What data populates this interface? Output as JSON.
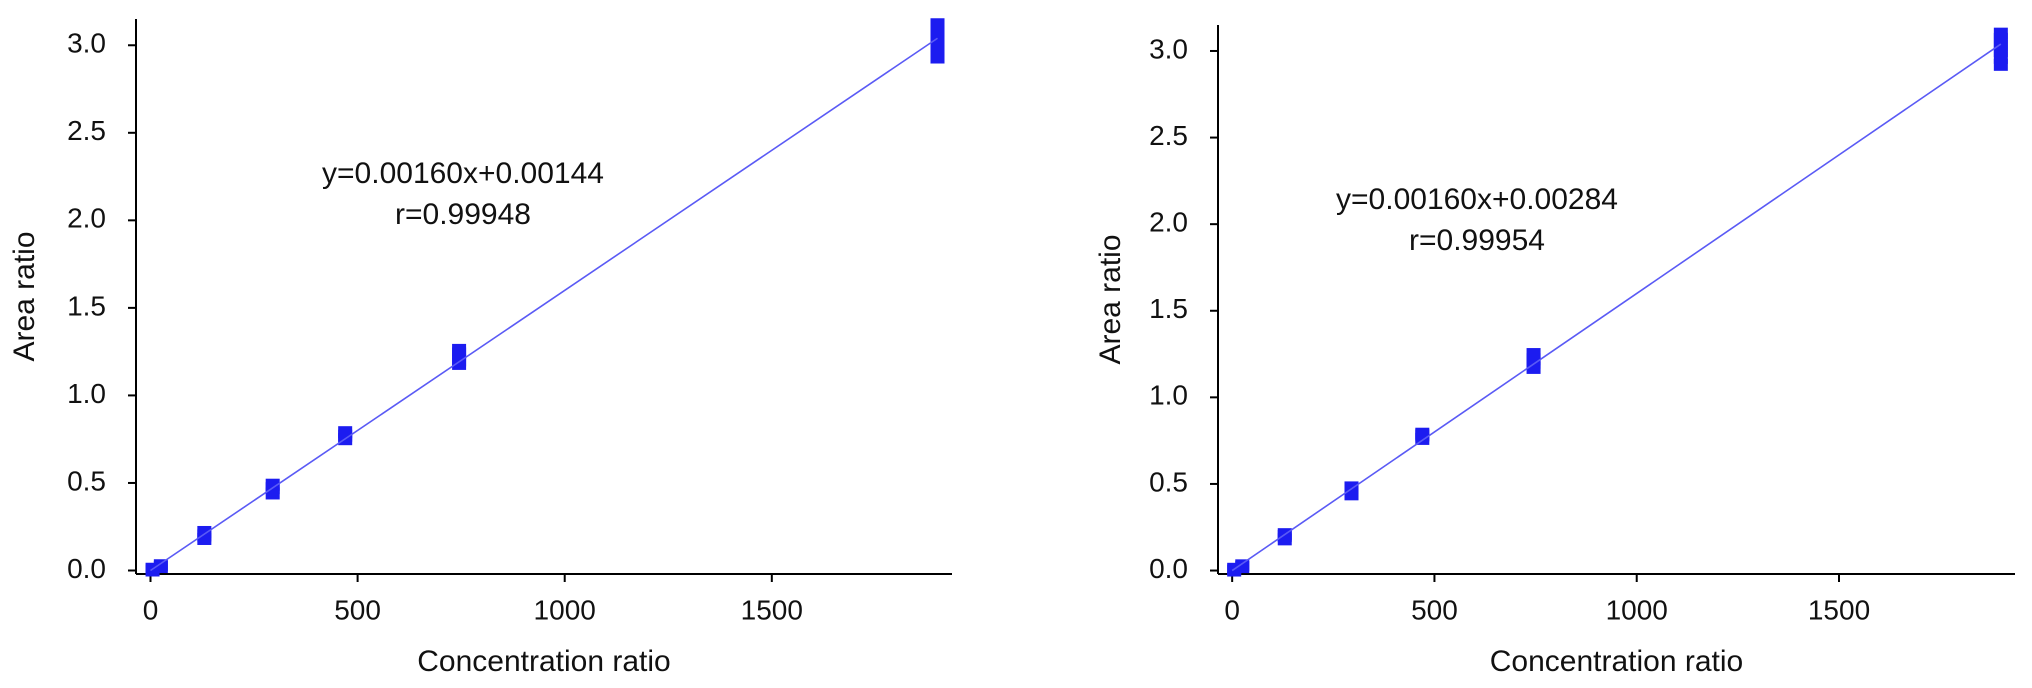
{
  "chart_data": [
    {
      "type": "scatter",
      "xlabel": "Concentration ratio",
      "ylabel": "Area ratio",
      "annotations": [
        "y=0.00160x+0.00144",
        "r=0.99948"
      ],
      "xlim": [
        -35,
        1935
      ],
      "ylim": [
        -0.02,
        3.15
      ],
      "xticks": [
        0,
        500,
        1000,
        1500
      ],
      "yticks": [
        {
          "value": 0,
          "label": "0.0"
        },
        0.5,
        {
          "value": 1,
          "label": "1.0"
        },
        1.5,
        {
          "value": 2,
          "label": "2.0"
        },
        2.5,
        {
          "value": 3,
          "label": "3.0"
        }
      ],
      "series": [
        {
          "type": "scatter",
          "color": "#1c1cf0",
          "x": [
            5,
            5,
            25,
            25,
            130,
            130,
            130,
            295,
            295,
            295,
            470,
            470,
            470,
            745,
            745,
            745,
            745,
            1900,
            1900,
            1900,
            1900,
            1900,
            1900
          ],
          "values": [
            0.01,
            0.0,
            0.03,
            0.02,
            0.18,
            0.2,
            0.22,
            0.44,
            0.47,
            0.49,
            0.75,
            0.77,
            0.79,
            1.18,
            1.2,
            1.24,
            1.26,
            2.93,
            2.97,
            3.0,
            3.04,
            3.08,
            3.12
          ]
        },
        {
          "type": "line",
          "color": "#5a5af5",
          "x": [
            0,
            1900
          ],
          "values": [
            0,
            3.04
          ]
        }
      ]
    },
    {
      "type": "scatter",
      "xlabel": "Concentration ratio",
      "ylabel": "Area ratio",
      "annotations": [
        "y=0.00160x+0.00284",
        "r=0.99954"
      ],
      "xlim": [
        -35,
        1935
      ],
      "ylim": [
        -0.02,
        3.15
      ],
      "xticks": [
        0,
        500,
        1000,
        1500
      ],
      "yticks": [
        {
          "value": 0,
          "label": "0.0"
        },
        0.5,
        {
          "value": 1,
          "label": "1.0"
        },
        1.5,
        {
          "value": 2,
          "label": "2.0"
        },
        2.5,
        {
          "value": 3,
          "label": "3.0"
        }
      ],
      "series": [
        {
          "type": "scatter",
          "color": "#1c1cf0",
          "x": [
            5,
            5,
            25,
            25,
            130,
            130,
            130,
            295,
            295,
            295,
            470,
            470,
            470,
            745,
            745,
            745,
            745,
            1900,
            1900,
            1900,
            1900,
            1900,
            1900
          ],
          "values": [
            0.01,
            0.0,
            0.03,
            0.02,
            0.18,
            0.2,
            0.21,
            0.44,
            0.46,
            0.48,
            0.76,
            0.78,
            0.79,
            1.17,
            1.2,
            1.22,
            1.25,
            2.92,
            2.96,
            3.0,
            3.03,
            3.07,
            3.1
          ]
        },
        {
          "type": "line",
          "color": "#5a5af5",
          "x": [
            0,
            1900
          ],
          "values": [
            0,
            3.04
          ]
        }
      ]
    }
  ]
}
